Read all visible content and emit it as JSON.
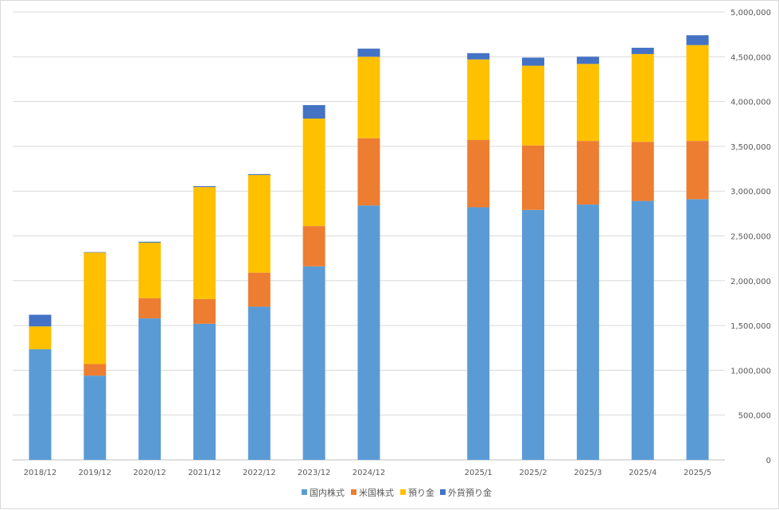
{
  "chart_data": {
    "type": "bar",
    "stacked": true,
    "categories": [
      "2018/12",
      "2019/12",
      "2020/12",
      "2021/12",
      "2022/12",
      "2023/12",
      "2024/12",
      "",
      "2025/1",
      "2025/2",
      "2025/3",
      "2025/4",
      "2025/5"
    ],
    "series": [
      {
        "name": "国内株式",
        "color": "#5b9bd5",
        "values": [
          1235000,
          940000,
          1580000,
          1520000,
          1710000,
          2160000,
          2840000,
          null,
          2820000,
          2790000,
          2850000,
          2890000,
          2910000
        ]
      },
      {
        "name": "米国株式",
        "color": "#ed7d31",
        "values": [
          0,
          130000,
          225000,
          275000,
          380000,
          450000,
          750000,
          null,
          750000,
          720000,
          710000,
          660000,
          650000
        ]
      },
      {
        "name": "預り金",
        "color": "#ffc000",
        "values": [
          255000,
          1245000,
          620000,
          1250000,
          1090000,
          1200000,
          910000,
          null,
          900000,
          890000,
          860000,
          980000,
          1070000
        ]
      },
      {
        "name": "外貨預り金",
        "color": "#4472c4",
        "values": [
          130000,
          5000,
          10000,
          10000,
          10000,
          150000,
          90000,
          null,
          70000,
          90000,
          80000,
          70000,
          110000
        ]
      }
    ],
    "yaxis": {
      "position": "right",
      "min": 0,
      "max": 5000000,
      "step": 500000,
      "tick_labels": [
        "0",
        "500,000",
        "1,000,000",
        "1,500,000",
        "2,000,000",
        "2,500,000",
        "3,000,000",
        "3,500,000",
        "4,000,000",
        "4,500,000",
        "5,000,000"
      ]
    },
    "grid": true,
    "legend": "bottom",
    "title": "",
    "xlabel": "",
    "ylabel": ""
  }
}
